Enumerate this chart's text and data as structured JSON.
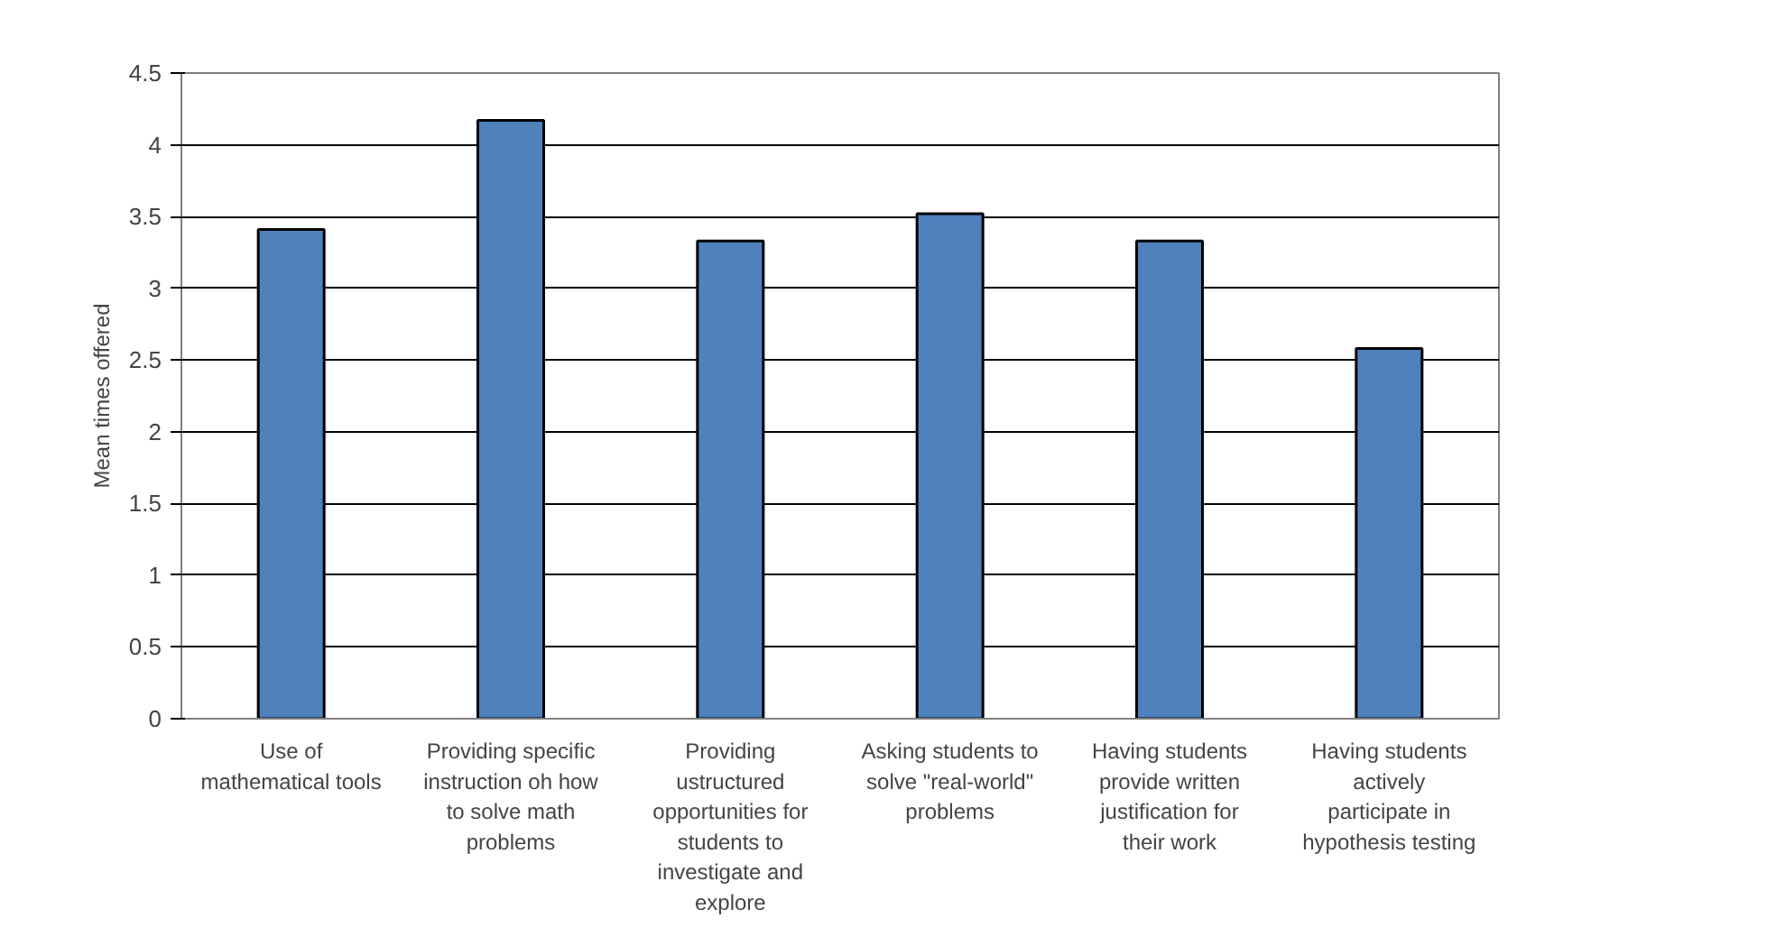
{
  "chart_data": {
    "type": "bar",
    "ylabel": "Mean times offered",
    "categories": [
      "Use of mathematical tools",
      "Providing specific instruction oh how to solve math problems",
      "Providing ustructured opportunities for students to investigate and explore",
      "Asking students to solve \"real-world\" problems",
      "Having students provide written justification for their work",
      "Having students actively participate in hypothesis testing"
    ],
    "values": [
      3.41,
      4.17,
      3.33,
      3.52,
      3.33,
      2.58
    ],
    "color": "#4f81bd",
    "ylim": [
      0,
      4.5
    ],
    "yticks": [
      0,
      0.5,
      1,
      1.5,
      2,
      2.5,
      3,
      3.5,
      4,
      4.5
    ],
    "grid": "y"
  }
}
